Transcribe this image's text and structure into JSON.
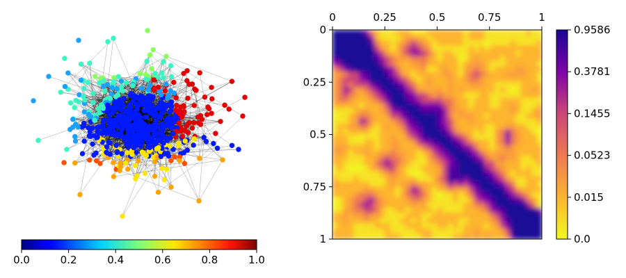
{
  "chart_data": [
    {
      "type": "network",
      "colormap": "jet",
      "colorbar": {
        "orientation": "horizontal",
        "range": [
          0.0,
          1.0
        ],
        "ticks": [
          "0.0",
          "0.2",
          "0.4",
          "0.6",
          "0.8",
          "1.0"
        ]
      },
      "node_color_groups": [
        {
          "color": "#0019ff",
          "value": 0.1
        },
        {
          "color": "#1aa0ff",
          "value": 0.3
        },
        {
          "color": "#3cf5c2",
          "value": 0.42
        },
        {
          "color": "#8cff60",
          "value": 0.52
        },
        {
          "color": "#ffe600",
          "value": 0.66
        },
        {
          "color": "#ffa400",
          "value": 0.75
        },
        {
          "color": "#ff5000",
          "value": 0.85
        },
        {
          "color": "#e00000",
          "value": 0.95
        }
      ],
      "edge_color": "#000000"
    },
    {
      "type": "heatmap",
      "colormap": "plasma_r",
      "x_ticks": [
        "0",
        "0.25",
        "0.5",
        "0.75",
        "1"
      ],
      "y_ticks": [
        "0",
        "0.25",
        "0.5",
        "0.75",
        "1"
      ],
      "x_axis_position": "top",
      "xlim": [
        0,
        1
      ],
      "ylim": [
        0,
        1
      ],
      "colorbar": {
        "orientation": "vertical",
        "scale": "nonlinear",
        "range": [
          0.0,
          0.9586
        ],
        "ticks": [
          "0.9586",
          "0.3781",
          "0.1455",
          "0.0523",
          "0.015",
          "0.0"
        ]
      },
      "pattern": "strong diagonal band with patchy off-diagonal blocks"
    }
  ]
}
